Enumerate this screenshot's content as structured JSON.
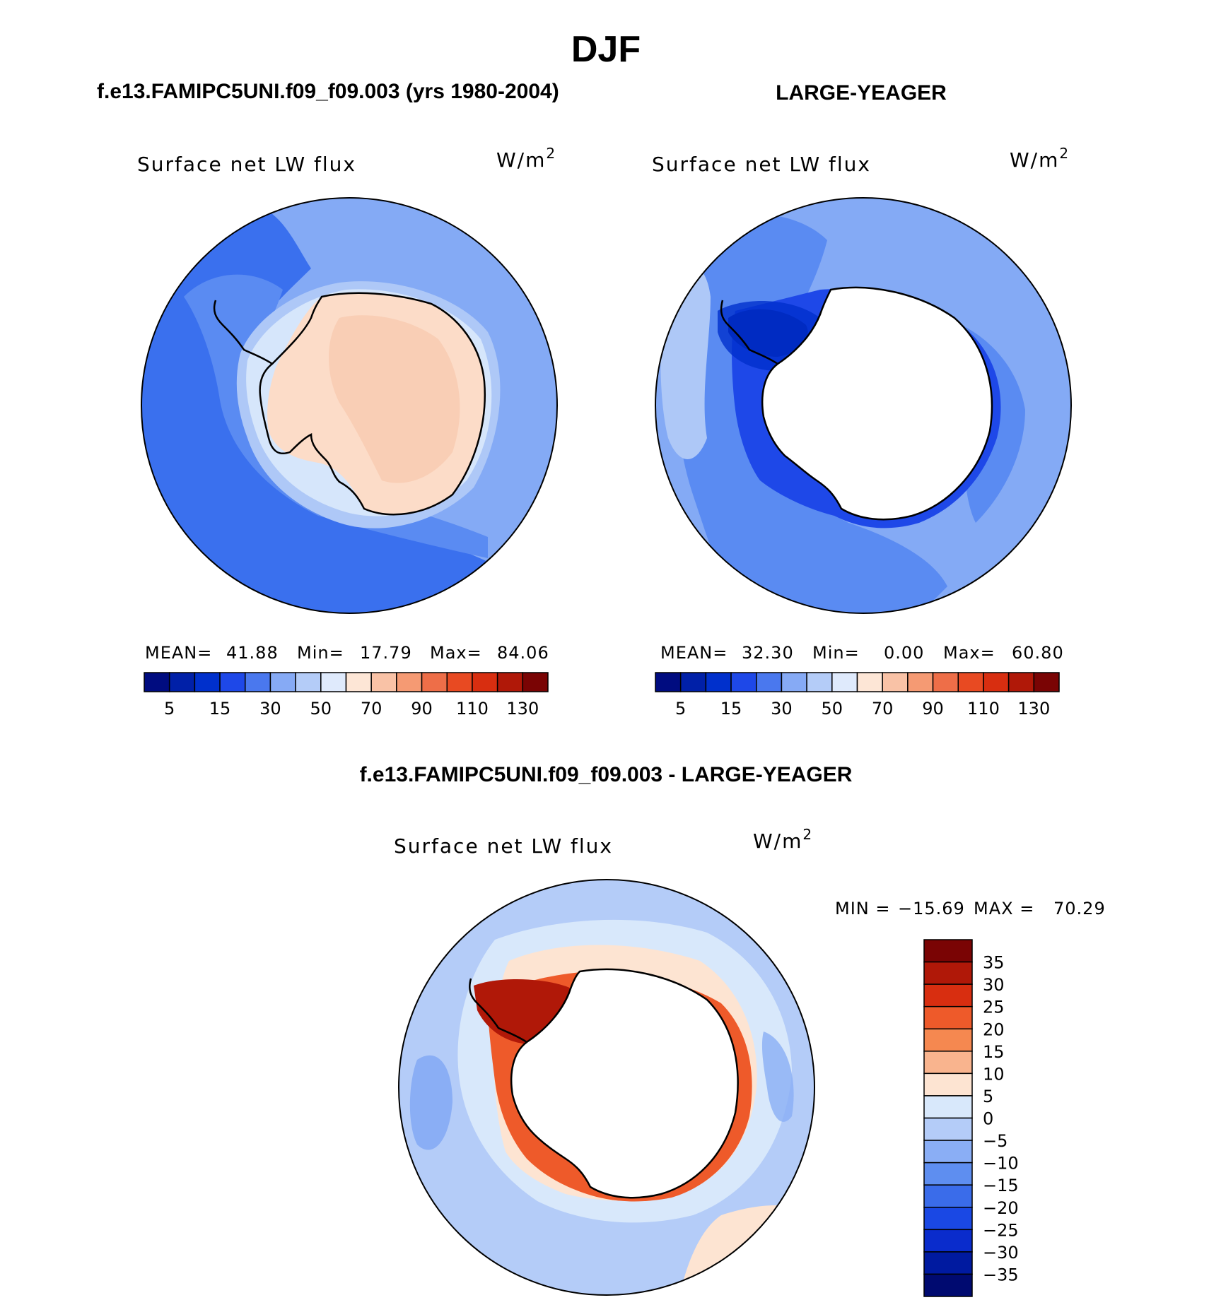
{
  "page_title": "DJF",
  "colors": {
    "ocean_deep": "#3a70ee",
    "ocean_mid": "#5a8bf2",
    "ocean_light": "#84aaf5",
    "ocean_pale": "#aec8f7",
    "ice_edge": "#d6e6fb",
    "land_warm": "#fcdcc8",
    "land_warmer": "#f8c8ad",
    "outline": "#000000"
  },
  "panels": [
    {
      "id": "model",
      "case_title": "f.e13.FAMIPC5UNI.f09_f09.003 (yrs 1980-2004)",
      "variable": "Surface net LW flux",
      "units": {
        "base": "W/m",
        "exp": "2"
      },
      "stats": {
        "mean_label": "MEAN=",
        "mean": "41.88",
        "min_label": "Min=",
        "min": "17.79",
        "max_label": "Max=",
        "max": "84.06"
      },
      "colorbar": {
        "colors": [
          "#000c80",
          "#0020a8",
          "#0030cc",
          "#1e48e8",
          "#4a78ee",
          "#86aaf5",
          "#b4ccf8",
          "#dfeafc",
          "#fde6d6",
          "#f9c2a6",
          "#f59a73",
          "#ee6e48",
          "#e84a22",
          "#d82e10",
          "#b01808",
          "#7a0404"
        ],
        "labels": [
          "5",
          "15",
          "30",
          "50",
          "70",
          "90",
          "110",
          "130"
        ]
      }
    },
    {
      "id": "obs",
      "case_title": "LARGE-YEAGER",
      "variable": "Surface net LW flux",
      "units": {
        "base": "W/m",
        "exp": "2"
      },
      "stats": {
        "mean_label": "MEAN=",
        "mean": "32.30",
        "min_label": "Min=",
        "min": "0.00",
        "max_label": "Max=",
        "max": "60.80"
      },
      "colorbar": {
        "colors": [
          "#000c80",
          "#0020a8",
          "#0030cc",
          "#1e48e8",
          "#4a78ee",
          "#86aaf5",
          "#b4ccf8",
          "#dfeafc",
          "#fde6d6",
          "#f9c2a6",
          "#f59a73",
          "#ee6e48",
          "#e84a22",
          "#d82e10",
          "#b01808",
          "#7a0404"
        ],
        "labels": [
          "5",
          "15",
          "30",
          "50",
          "70",
          "90",
          "110",
          "130"
        ]
      }
    }
  ],
  "diff": {
    "title": "f.e13.FAMIPC5UNI.f09_f09.003 - LARGE-YEAGER",
    "variable": "Surface net LW flux",
    "units": {
      "base": "W/m",
      "exp": "2"
    },
    "minmax": {
      "min_label": "MIN =",
      "min": "−15.69",
      "max_label": "MAX =",
      "max": "70.29"
    },
    "colorbar": {
      "colors": [
        "#7a0404",
        "#b01808",
        "#d82e10",
        "#ee5a2a",
        "#f58850",
        "#f9b48e",
        "#fde4d2",
        "#d8e8fb",
        "#b4ccf8",
        "#8aaef5",
        "#5e8ef0",
        "#3a6cea",
        "#1a48e4",
        "#0a2ccc",
        "#001aa0",
        "#000a70"
      ],
      "labels": [
        "35",
        "30",
        "25",
        "20",
        "15",
        "10",
        "5",
        "0",
        "−5",
        "−10",
        "−15",
        "−20",
        "−25",
        "−30",
        "−35"
      ]
    }
  }
}
